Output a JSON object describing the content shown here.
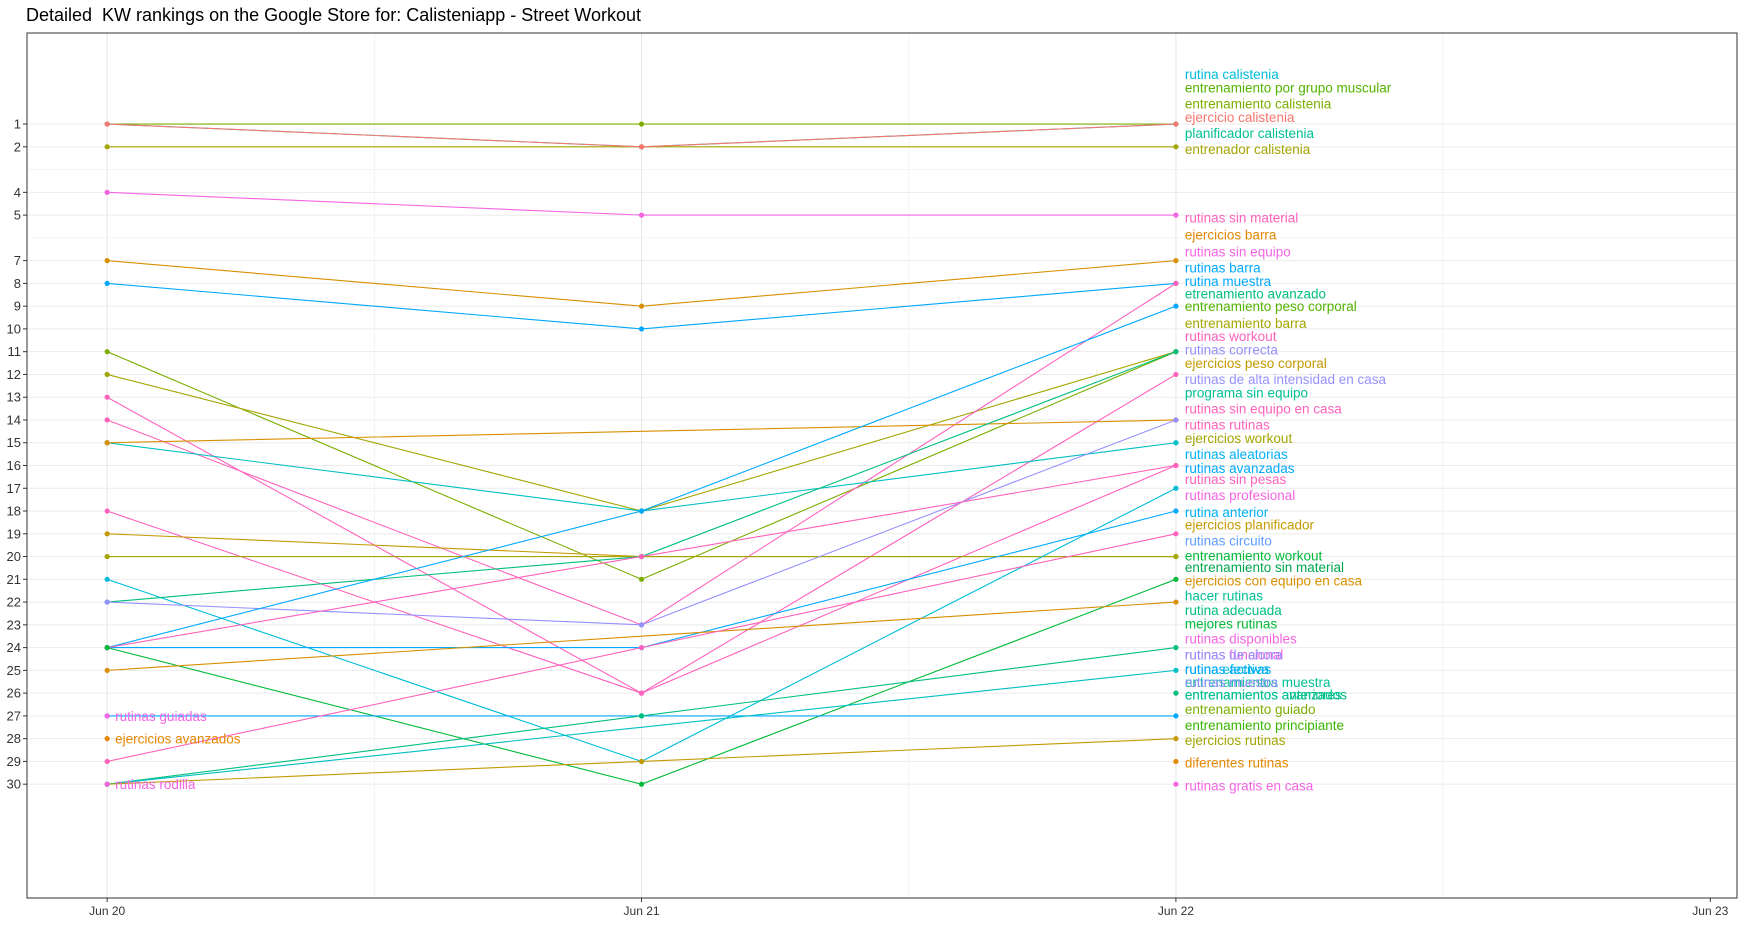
{
  "chart_data": {
    "type": "line",
    "title": "Detailed  KW rankings on the Google Store for: Calisteniapp - Street Workout",
    "x_ticks": [
      "Jun 20",
      "Jun 21",
      "Jun 22",
      "Jun 23"
    ],
    "xlim": [
      "2020-06-19.85",
      "2020-06-23.05"
    ],
    "y_ticks": [
      1,
      2,
      4,
      5,
      7,
      8,
      9,
      10,
      11,
      12,
      13,
      14,
      15,
      16,
      17,
      18,
      19,
      20,
      21,
      22,
      23,
      24,
      25,
      26,
      27,
      28,
      29,
      30
    ],
    "ylim": [
      -3,
      35
    ],
    "y_reversed": true,
    "grid": true,
    "legend": "none",
    "series": [
      {
        "color": "#7CAE00",
        "values": [
          1,
          1,
          1
        ]
      },
      {
        "color": "#00BFC4",
        "values": [
          1,
          2,
          1
        ]
      },
      {
        "color": "#A3A500",
        "values": [
          2,
          2,
          2
        ]
      },
      {
        "color": "#F8766D",
        "values": [
          1,
          2,
          1
        ]
      },
      {
        "color": "#F564E3",
        "values": [
          4,
          5,
          5
        ]
      },
      {
        "color": "#D89000",
        "values": [
          7,
          9,
          7
        ]
      },
      {
        "color": "#00A9FF",
        "values": [
          8,
          10,
          8
        ]
      },
      {
        "color": "#7CAE00",
        "values": [
          11,
          21,
          11
        ]
      },
      {
        "color": "#A3A500",
        "values": [
          12,
          18,
          11
        ]
      },
      {
        "color": "#FF62BC",
        "values": [
          13,
          26,
          12
        ]
      },
      {
        "color": "#FF62BC",
        "values": [
          14,
          23,
          8
        ]
      },
      {
        "color": "#00BFC4",
        "values": [
          15,
          18,
          15
        ]
      },
      {
        "color": "#D89000",
        "values": [
          15,
          14.5,
          14
        ]
      },
      {
        "color": "#FF62BC",
        "values": [
          18,
          26,
          16
        ]
      },
      {
        "color": "#C49A00",
        "values": [
          19,
          20,
          20
        ]
      },
      {
        "color": "#A3A500",
        "values": [
          20,
          20,
          20
        ]
      },
      {
        "color": "#00BCD8",
        "values": [
          21,
          29,
          17
        ]
      },
      {
        "color": "#00BF7D",
        "values": [
          22,
          20,
          11
        ]
      },
      {
        "color": "#9590FF",
        "values": [
          22,
          23,
          14
        ]
      },
      {
        "color": "#00A9FF",
        "values": [
          24,
          18,
          9
        ]
      },
      {
        "color": "#00A9FF",
        "values": [
          24,
          24,
          18
        ]
      },
      {
        "color": "#FF62BC",
        "values": [
          24,
          20,
          16
        ]
      },
      {
        "color": "#00BA38",
        "values": [
          24,
          30,
          21
        ]
      },
      {
        "color": "#D89000",
        "values": [
          25,
          23.5,
          22
        ]
      },
      {
        "color": "#00A9FF",
        "values": [
          27,
          27,
          27
        ]
      },
      {
        "color": "#FF62BC",
        "values": [
          29,
          24,
          19
        ]
      },
      {
        "color": "#00BF7D",
        "values": [
          30,
          27,
          24
        ]
      },
      {
        "color": "#00BFC4",
        "values": [
          30,
          27.5,
          25
        ]
      },
      {
        "color": "#C49A00",
        "values": [
          30,
          29,
          28
        ]
      }
    ],
    "start_labels": [
      {
        "text": "rutinas guiadas",
        "color": "#F564E3",
        "value": 27
      },
      {
        "text": "ejercicios avanzados",
        "color": "#E58700",
        "value": 28
      },
      {
        "text": "rutinas rodilla",
        "color": "#F564E3",
        "value": 30
      }
    ],
    "end_points": [
      {
        "color": "#00BF7D",
        "value": 26
      },
      {
        "color": "#E58700",
        "value": 29
      },
      {
        "color": "#F564E3",
        "value": 30
      }
    ],
    "end_labels": [
      {
        "text": "rutina calistenia",
        "color": "#00BCD8",
        "value": -1.2
      },
      {
        "text": "entrenamiento por grupo muscular",
        "color": "#53B400",
        "value": -0.6
      },
      {
        "text": "entrenamiento calistenia",
        "color": "#7CAE00",
        "value": 0.1
      },
      {
        "text": "ejercicio calistenia",
        "color": "#F8766D",
        "value": 0.7
      },
      {
        "text": "planificador calistenia",
        "color": "#00C094",
        "value": 1.4
      },
      {
        "text": "entrenador calistenia",
        "color": "#A3A500",
        "value": 2.1
      },
      {
        "text": "rutinas sin material",
        "color": "#FF62BC",
        "value": 5.1
      },
      {
        "text": "ejercicios barra",
        "color": "#E58700",
        "value": 5.85
      },
      {
        "text": "rutinas sin equipo",
        "color": "#F564E3",
        "value": 6.6
      },
      {
        "text": "rutinas barra",
        "color": "#00A9FF",
        "value": 7.3
      },
      {
        "text": "rutina muestra",
        "color": "#00A9FF",
        "value": 7.9
      },
      {
        "text": "etrenamiento avanzado",
        "color": "#00BF7D",
        "value": 8.45
      },
      {
        "text": "entrenamiento peso corporal",
        "color": "#53B400",
        "value": 9.0
      },
      {
        "text": "entrenamiento barra",
        "color": "#A3A500",
        "value": 9.75
      },
      {
        "text": "rutinas workout",
        "color": "#FF62BC",
        "value": 10.3
      },
      {
        "text": "rutinas correcta",
        "color": "#9590FF",
        "value": 10.9
      },
      {
        "text": "ejercicios peso corporal",
        "color": "#C49A00",
        "value": 11.5
      },
      {
        "text": "rutinas de alta intensidad en casa",
        "color": "#9590FF",
        "value": 12.2
      },
      {
        "text": "programa sin equipo",
        "color": "#00C094",
        "value": 12.8
      },
      {
        "text": "rutinas sin equipo en casa",
        "color": "#FF62BC",
        "value": 13.5
      },
      {
        "text": "rutinas rutinas",
        "color": "#FF62BC",
        "value": 14.2
      },
      {
        "text": "ejercicios workout",
        "color": "#A3A500",
        "value": 14.8
      },
      {
        "text": "rutinas aleatorias",
        "color": "#00B0F6",
        "value": 15.5
      },
      {
        "text": "rutinas avanzadas",
        "color": "#00A9FF",
        "value": 16.1
      },
      {
        "text": "rutinas sin pesas",
        "color": "#FF62BC",
        "value": 16.6
      },
      {
        "text": "rutinas profesional",
        "color": "#F564E3",
        "value": 17.3
      },
      {
        "text": "rutina anterior",
        "color": "#00B0F6",
        "value": 18.05
      },
      {
        "text": "ejercicios planificador",
        "color": "#C49A00",
        "value": 18.6
      },
      {
        "text": "rutinas circuito",
        "color": "#619CFF",
        "value": 19.3
      },
      {
        "text": "entrenamiento workout",
        "color": "#00BA38",
        "value": 19.95
      },
      {
        "text": "entrenamiento sin material",
        "color": "#00A64E",
        "value": 20.45
      },
      {
        "text": "ejercicios con equipo en casa",
        "color": "#D89000",
        "value": 21.05
      },
      {
        "text": "hacer rutinas",
        "color": "#00C094",
        "value": 21.7
      },
      {
        "text": "rutina adecuada",
        "color": "#00BF7D",
        "value": 22.35
      },
      {
        "text": "mejores rutinas",
        "color": "#00BA38",
        "value": 22.95
      },
      {
        "text": "rutinas disponibles",
        "color": "#F564E3",
        "value": 23.6
      },
      {
        "text": "rutinas funcional",
        "color": "#F564E3",
        "value": 24.3
      },
      {
        "text": "rutinas de ahora",
        "color": "#9590FF",
        "value": 24.3
      },
      {
        "text": "rutina efectiva",
        "color": "#00BCD8",
        "value": 24.95
      },
      {
        "text": "rutinas activas",
        "color": "#00A9FF",
        "value": 24.95
      },
      {
        "text": "entrenamientos muestra",
        "color": "#00C094",
        "value": 25.5
      },
      {
        "text": "rutinas muestra",
        "color": "#9590FF",
        "value": 25.5
      },
      {
        "text": "entrenamientos avanzados",
        "color": "#00BF7D",
        "value": 26.05
      },
      {
        "text": "entrenamientos anteriores",
        "color": "#00C094",
        "value": 26.05
      },
      {
        "text": "entrenamiento guiado",
        "color": "#7CAE00",
        "value": 26.7
      },
      {
        "text": "entrenamiento principiante",
        "color": "#39B600",
        "value": 27.4
      },
      {
        "text": "ejercicios rutinas",
        "color": "#A3A500",
        "value": 28.05
      },
      {
        "text": "diferentes rutinas",
        "color": "#E58700",
        "value": 29.05
      },
      {
        "text": "rutinas gratis en casa",
        "color": "#F564E3",
        "value": 30.05
      }
    ]
  }
}
